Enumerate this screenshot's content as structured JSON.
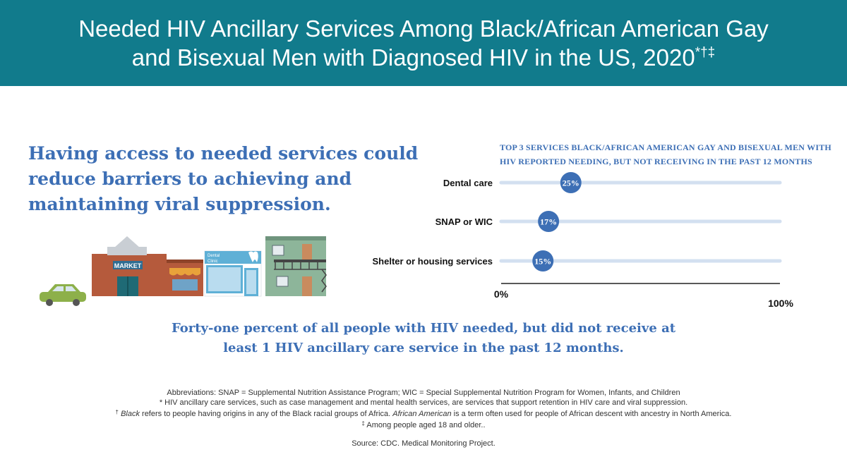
{
  "header": {
    "title_line1": "Needed HIV Ancillary Services Among Black/African American Gay",
    "title_line2": "and Bisexual Men with Diagnosed HIV in the US, 2020",
    "title_marks": "*†‡"
  },
  "lead_text": "Having access to needed services could reduce barriers to achieving and maintaining viral suppression.",
  "illustration": {
    "market_sign": "MARKET",
    "clinic_sign_line1": "Dental",
    "clinic_sign_line2": "Clinic"
  },
  "chart_data": {
    "type": "bar",
    "title_line1": "TOP 3 SERVICES BLACK/AFRICAN AMERICAN GAY AND BISEXUAL MEN WITH",
    "title_line2": "HIV REPORTED NEEDING, BUT NOT RECEIVING IN THE PAST 12 MONTHS",
    "categories": [
      "Dental care",
      "SNAP or WIC",
      "Shelter or housing services"
    ],
    "values": [
      25,
      17,
      15
    ],
    "data_labels": [
      "25%",
      "17%",
      "15%"
    ],
    "xlim": [
      0,
      100
    ],
    "x_tick_labels": [
      "0%",
      "100%"
    ],
    "track_color": "#d3e0f0",
    "marker_color": "#3d6fb5"
  },
  "stat": {
    "line1": "Forty-one percent of all people with HIV needed, but did not receive at",
    "line2": "least 1 HIV ancillary care service in the past 12 months."
  },
  "notes": {
    "abbreviations": "Abbreviations: SNAP = Supplemental Nutrition Assistance Program; WIC = Special Supplemental Nutrition Program for Women, Infants, and Children",
    "note1": "* HIV ancillary care services, such as case management and mental health services, are services that support retention in HIV care and viral suppression.",
    "note2_mark": "†",
    "note2_term1": "Black",
    "note2_mid": " refers to people having origins in any of the Black racial groups of Africa. ",
    "note2_term2": "African American",
    "note2_end": " is a term often used for people of African descent with ancestry in North America.",
    "note3_mark": "‡",
    "note3": " Among people aged 18 and older..",
    "source": "Source: CDC. Medical Monitoring Project."
  }
}
